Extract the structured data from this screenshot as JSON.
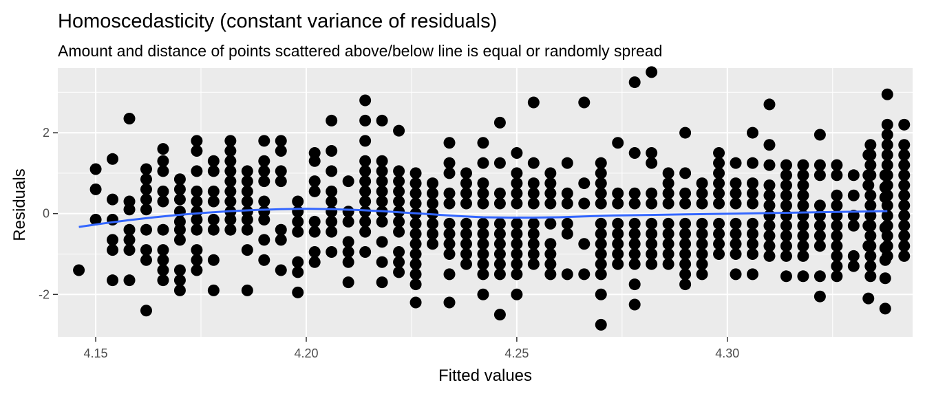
{
  "chart_data": {
    "type": "scatter",
    "title": "Homoscedasticity (constant variance of residuals)",
    "subtitle": "Amount and distance of points scattered above/below line is equal or randomly spread",
    "xlabel": "Fitted values",
    "ylabel": "Residuals",
    "xlim": [
      4.141,
      4.344
    ],
    "ylim": [
      -3.05,
      3.6
    ],
    "x_ticks": [
      4.15,
      4.2,
      4.25,
      4.3
    ],
    "x_tick_labels": [
      "4.15",
      "4.20",
      "4.25",
      "4.30"
    ],
    "y_ticks": [
      -2,
      0,
      2
    ],
    "y_tick_labels": [
      "-2",
      "0",
      "2"
    ],
    "x_minor_ticks": [
      4.175,
      4.225,
      4.275,
      4.325
    ],
    "y_minor_ticks": [
      -1,
      1,
      3
    ],
    "grid": true,
    "legend": "none",
    "colors": {
      "panel": "#EBEBEB",
      "grid": "#FFFFFF",
      "points": "#000000",
      "smooth": "#3366FF"
    },
    "columns": [
      {
        "x": 4.146,
        "y": [
          -1.4
        ]
      },
      {
        "x": 4.15,
        "y": [
          1.1,
          0.6,
          -0.15
        ]
      },
      {
        "x": 4.154,
        "y": [
          1.35,
          0.35,
          -0.15,
          -0.65,
          -0.9,
          -1.65
        ]
      },
      {
        "x": 4.158,
        "y": [
          2.35,
          0.3,
          0.1,
          -0.4,
          -0.65,
          -0.9,
          -1.65
        ]
      },
      {
        "x": 4.162,
        "y": [
          1.1,
          0.85,
          0.6,
          0.35,
          0.1,
          -0.4,
          -0.9,
          -1.15,
          -2.4
        ]
      },
      {
        "x": 4.166,
        "y": [
          1.6,
          1.3,
          1.05,
          0.55,
          0.3,
          -0.4,
          -0.9,
          -1.15,
          -1.4,
          -1.65
        ]
      },
      {
        "x": 4.17,
        "y": [
          0.85,
          0.6,
          0.35,
          0.05,
          -0.2,
          -0.4,
          -0.65,
          -1.4,
          -1.65,
          -1.9
        ]
      },
      {
        "x": 4.174,
        "y": [
          1.8,
          1.55,
          1.05,
          0.55,
          0.3,
          0.05,
          -0.15,
          -0.4,
          -0.9,
          -1.15,
          -1.4
        ]
      },
      {
        "x": 4.178,
        "y": [
          1.3,
          1.05,
          0.55,
          0.3,
          -0.15,
          -0.4,
          -1.15,
          -1.9
        ]
      },
      {
        "x": 4.182,
        "y": [
          1.8,
          1.55,
          1.3,
          1.05,
          0.8,
          0.55,
          0.3,
          0.05,
          -0.15,
          -0.4
        ]
      },
      {
        "x": 4.186,
        "y": [
          1.05,
          0.8,
          0.55,
          0.3,
          0.05,
          -0.15,
          -0.4,
          -0.9,
          -1.9
        ]
      },
      {
        "x": 4.19,
        "y": [
          1.8,
          1.3,
          1.05,
          0.8,
          0.3,
          0.05,
          -0.15,
          -0.65,
          -1.15
        ]
      },
      {
        "x": 4.194,
        "y": [
          1.8,
          1.55,
          1.05,
          0.8,
          -0.4,
          -0.65,
          -1.4
        ]
      },
      {
        "x": 4.198,
        "y": [
          0.3,
          0.05,
          -0.2,
          -0.45,
          -1.2,
          -1.45,
          -1.95
        ]
      },
      {
        "x": 4.202,
        "y": [
          1.5,
          1.3,
          0.8,
          0.55,
          -0.2,
          -0.45,
          -0.95,
          -1.2
        ]
      },
      {
        "x": 4.206,
        "y": [
          2.3,
          1.55,
          1.05,
          0.55,
          0.3,
          0.05,
          -0.2,
          -0.45,
          -0.95
        ]
      },
      {
        "x": 4.21,
        "y": [
          0.8,
          0.05,
          -0.2,
          -0.7,
          -0.95,
          -1.2,
          -1.7
        ]
      },
      {
        "x": 4.214,
        "y": [
          2.8,
          2.3,
          1.8,
          1.3,
          1.05,
          0.8,
          0.55,
          0.3,
          0.05,
          -0.2,
          -0.45,
          -0.95
        ]
      },
      {
        "x": 4.218,
        "y": [
          2.3,
          1.3,
          1.05,
          0.8,
          0.55,
          0.3,
          0.05,
          -0.2,
          -0.7,
          -1.2,
          -1.7
        ]
      },
      {
        "x": 4.222,
        "y": [
          2.05,
          1.05,
          0.8,
          0.55,
          0.3,
          0.05,
          -0.2,
          -0.45,
          -0.95,
          -1.2,
          -1.45
        ]
      },
      {
        "x": 4.226,
        "y": [
          1.0,
          0.75,
          0.5,
          0.25,
          0.0,
          -0.25,
          -0.5,
          -0.75,
          -1.0,
          -1.25,
          -1.5,
          -1.75,
          -2.2
        ]
      },
      {
        "x": 4.23,
        "y": [
          0.75,
          0.5,
          0.25,
          0.0,
          -0.25,
          -0.5,
          -0.75
        ]
      },
      {
        "x": 4.234,
        "y": [
          1.75,
          1.25,
          1.0,
          0.5,
          0.25,
          -0.25,
          -0.5,
          -0.75,
          -1.0,
          -1.5,
          -2.2
        ]
      },
      {
        "x": 4.238,
        "y": [
          1.0,
          0.75,
          0.5,
          0.25,
          -0.25,
          -0.5,
          -0.75,
          -1.0,
          -1.25
        ]
      },
      {
        "x": 4.242,
        "y": [
          1.75,
          1.25,
          0.75,
          0.5,
          0.25,
          -0.25,
          -0.5,
          -0.75,
          -1.0,
          -1.25,
          -1.5,
          -2.0
        ]
      },
      {
        "x": 4.246,
        "y": [
          2.25,
          1.25,
          0.5,
          0.25,
          -0.25,
          -0.5,
          -0.75,
          -1.0,
          -1.25,
          -1.5,
          -2.5
        ]
      },
      {
        "x": 4.25,
        "y": [
          1.5,
          1.0,
          0.75,
          0.5,
          0.25,
          -0.25,
          -0.5,
          -0.75,
          -1.0,
          -1.25,
          -1.5,
          -2.0
        ]
      },
      {
        "x": 4.254,
        "y": [
          2.75,
          1.25,
          0.75,
          0.5,
          0.25,
          -0.25,
          -0.5,
          -0.75,
          -1.0,
          -1.25
        ]
      },
      {
        "x": 4.258,
        "y": [
          1.0,
          0.75,
          0.5,
          0.25,
          -0.25,
          -0.75,
          -1.0,
          -1.25,
          -1.5
        ]
      },
      {
        "x": 4.262,
        "y": [
          1.25,
          0.5,
          0.25,
          -0.25,
          -0.5,
          -1.5
        ]
      },
      {
        "x": 4.266,
        "y": [
          2.75,
          0.75,
          0.25,
          -0.75,
          -1.5
        ]
      },
      {
        "x": 4.27,
        "y": [
          1.25,
          1.0,
          0.75,
          0.5,
          0.25,
          -0.25,
          -0.5,
          -0.75,
          -1.0,
          -1.25,
          -1.5,
          -2.0,
          -2.75
        ]
      },
      {
        "x": 4.274,
        "y": [
          1.75,
          0.5,
          0.25,
          -0.25,
          -0.5,
          -0.75,
          -1.0,
          -1.25
        ]
      },
      {
        "x": 4.278,
        "y": [
          3.25,
          1.5,
          0.5,
          0.25,
          -0.25,
          -0.5,
          -0.75,
          -1.0,
          -1.25,
          -1.75,
          -2.25
        ]
      },
      {
        "x": 4.282,
        "y": [
          3.5,
          1.5,
          1.25,
          0.5,
          0.25,
          -0.25,
          -0.5,
          -0.75,
          -1.0,
          -1.25
        ]
      },
      {
        "x": 4.286,
        "y": [
          1.0,
          0.75,
          0.5,
          0.25,
          -0.25,
          -0.5,
          -0.75,
          -1.0,
          -1.25
        ]
      },
      {
        "x": 4.29,
        "y": [
          2.0,
          1.0,
          0.5,
          0.25,
          -0.25,
          -0.5,
          -0.75,
          -1.0,
          -1.25,
          -1.5,
          -1.75
        ]
      },
      {
        "x": 4.294,
        "y": [
          0.75,
          0.5,
          0.25,
          -0.25,
          -0.5,
          -0.75,
          -1.0,
          -1.25,
          -1.5
        ]
      },
      {
        "x": 4.298,
        "y": [
          1.5,
          1.25,
          1.0,
          0.75,
          0.5,
          0.25,
          -0.25,
          -0.5,
          -0.75,
          -1.0
        ]
      },
      {
        "x": 4.302,
        "y": [
          1.25,
          0.75,
          0.5,
          0.25,
          -0.25,
          -0.5,
          -0.75,
          -1.0,
          -1.5
        ]
      },
      {
        "x": 4.306,
        "y": [
          2.0,
          1.25,
          0.75,
          0.5,
          0.25,
          -0.25,
          -0.5,
          -0.75,
          -1.0,
          -1.5
        ]
      },
      {
        "x": 4.31,
        "y": [
          2.7,
          1.7,
          1.2,
          0.7,
          0.45,
          0.2,
          -0.05,
          -0.3,
          -0.55,
          -0.8,
          -1.05
        ]
      },
      {
        "x": 4.314,
        "y": [
          1.2,
          0.95,
          0.7,
          0.45,
          0.2,
          -0.05,
          -0.3,
          -0.55,
          -0.8,
          -1.05,
          -1.55
        ]
      },
      {
        "x": 4.318,
        "y": [
          1.2,
          0.95,
          0.7,
          0.45,
          0.2,
          -0.05,
          -0.3,
          -0.55,
          -0.8,
          -1.05,
          -1.55
        ]
      },
      {
        "x": 4.322,
        "y": [
          1.95,
          1.2,
          0.95,
          0.2,
          -0.05,
          -0.3,
          -0.55,
          -0.8,
          -1.55,
          -2.05
        ]
      },
      {
        "x": 4.326,
        "y": [
          1.2,
          0.95,
          0.45,
          0.2,
          -0.05,
          -0.3,
          -0.55,
          -0.8,
          -1.05,
          -1.3,
          -1.55
        ]
      },
      {
        "x": 4.33,
        "y": [
          0.95,
          0.45,
          -0.05,
          -0.3,
          -1.05,
          -1.3
        ]
      },
      {
        "x": 4.334,
        "y": [
          1.7,
          1.45,
          1.2,
          0.95,
          0.45,
          0.2,
          -0.05,
          -0.3,
          -0.55,
          -0.8,
          -1.05,
          -1.3,
          -1.55
        ]
      },
      {
        "x": 4.338,
        "y": [
          2.95,
          2.2,
          1.95,
          1.7,
          1.45,
          1.2,
          0.95,
          0.7,
          0.45,
          0.2,
          -0.05,
          -0.3,
          -0.55,
          -0.8,
          -1.05
        ]
      },
      {
        "x": 4.342,
        "y": [
          2.2,
          1.7,
          1.45,
          1.2,
          0.95,
          0.7,
          0.45,
          0.2,
          -0.05,
          -0.3,
          -0.55,
          -0.8,
          -1.05
        ]
      }
    ],
    "extra_points": [
      {
        "x": 4.3335,
        "y": [
          1.45,
          0.95,
          0.7,
          -0.3,
          -0.8,
          -2.1
        ]
      },
      {
        "x": 4.3375,
        "y": [
          0.95,
          0.65,
          0.4,
          -0.35,
          -0.85,
          -1.15,
          -1.6,
          -2.35
        ]
      }
    ],
    "smooth_line": {
      "x": [
        4.146,
        4.152,
        4.158,
        4.164,
        4.17,
        4.176,
        4.182,
        4.188,
        4.194,
        4.2,
        4.206,
        4.212,
        4.218,
        4.224,
        4.23,
        4.236,
        4.242,
        4.248,
        4.254,
        4.26,
        4.266,
        4.272,
        4.278,
        4.284,
        4.29,
        4.296,
        4.302,
        4.308,
        4.314,
        4.32,
        4.326,
        4.332,
        4.338
      ],
      "y": [
        -0.33,
        -0.24,
        -0.16,
        -0.09,
        -0.03,
        0.02,
        0.06,
        0.09,
        0.11,
        0.12,
        0.11,
        0.09,
        0.06,
        0.02,
        -0.02,
        -0.06,
        -0.09,
        -0.1,
        -0.1,
        -0.09,
        -0.07,
        -0.05,
        -0.04,
        -0.03,
        -0.02,
        -0.01,
        0.0,
        0.01,
        0.02,
        0.03,
        0.04,
        0.05,
        0.06
      ]
    }
  }
}
